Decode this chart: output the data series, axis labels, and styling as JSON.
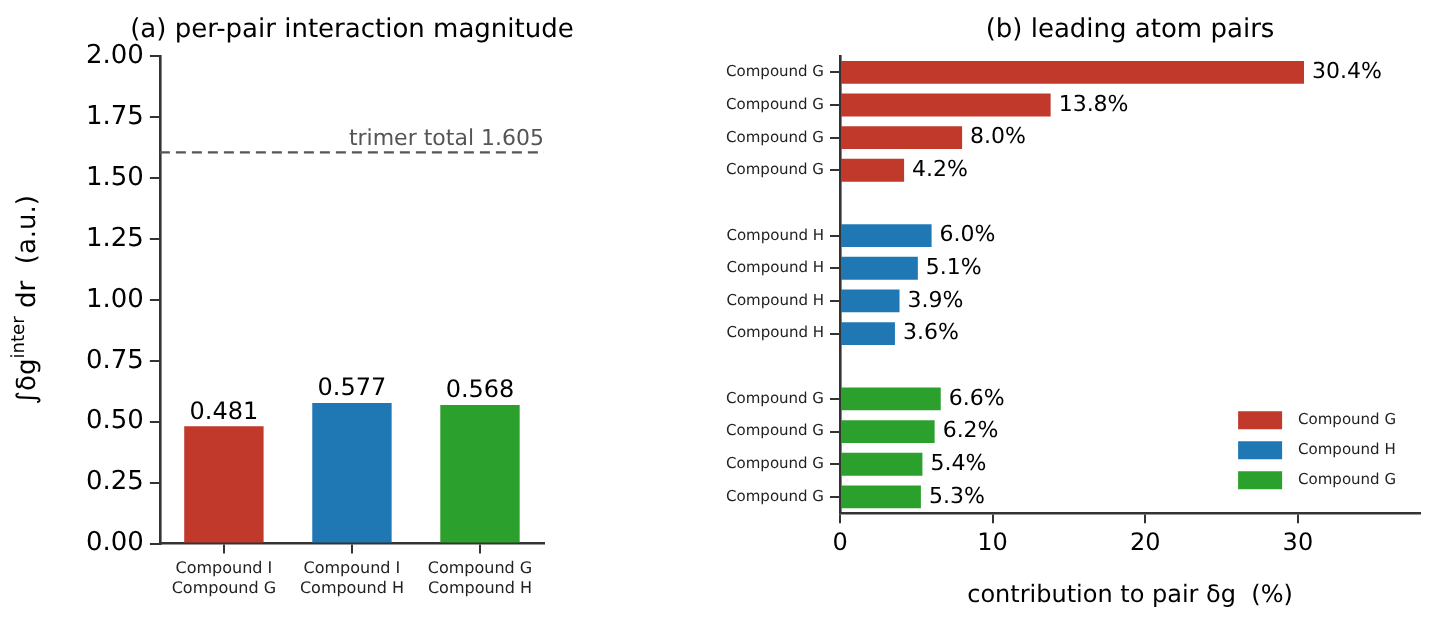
{
  "chart_data": [
    {
      "type": "bar",
      "title": "(a) per-pair interaction magnitude",
      "ylabel": "∫δg$^{inter}$ dr  (a.u.)",
      "categories": [
        "Compound I\nCompound G",
        "Compound I\nCompound H",
        "Compound G\nCompound H"
      ],
      "values": [
        0.481,
        0.577,
        0.568
      ],
      "colors": [
        "#c0392b",
        "#1f77b4",
        "#2ca02c"
      ],
      "ylim": [
        0,
        2
      ],
      "yticks": [
        {
          "value": 0,
          "label": "0.00"
        },
        {
          "value": 0.25,
          "label": "0.25"
        },
        {
          "value": 0.5,
          "label": "0.50"
        },
        {
          "value": 0.75,
          "label": "0.75"
        },
        {
          "value": 1,
          "label": "1.00"
        },
        {
          "value": 1.25,
          "label": "1.25"
        },
        {
          "value": 1.5,
          "label": "1.50"
        },
        {
          "value": 1.75,
          "label": "1.75"
        },
        {
          "value": 2,
          "label": "2.00"
        }
      ],
      "ref_lines": [
        {
          "axis": "y",
          "value": 1.605,
          "label": "trimer total 1.605",
          "color": "#555555",
          "line_style": "dashed"
        }
      ],
      "data_labels": true,
      "grid": false,
      "legend": false
    },
    {
      "type": "bar",
      "orientation": "horizontal",
      "title": "(b) leading atom pairs",
      "xlabel": "contribution to pair δg  (%)",
      "categories": [
        "Compound G",
        "Compound G",
        "Compound G",
        "Compound G",
        null,
        "Compound H",
        "Compound H",
        "Compound H",
        "Compound H",
        null,
        "Compound G",
        "Compound G",
        "Compound G",
        "Compound G"
      ],
      "series": [
        {
          "name": "Compound G",
          "color": "#c0392b",
          "values": [
            30.4,
            13.8,
            8.0,
            4.2,
            null,
            null,
            null,
            null,
            null,
            null,
            null,
            null,
            null,
            null
          ],
          "value_labels": [
            "30.4%",
            "13.8%",
            "8.0%",
            "4.2%",
            null,
            null,
            null,
            null,
            null,
            null,
            null,
            null,
            null,
            null
          ]
        },
        {
          "name": "Compound H",
          "color": "#1f77b4",
          "values": [
            null,
            null,
            null,
            null,
            null,
            6.0,
            5.1,
            3.9,
            3.6,
            null,
            null,
            null,
            null,
            null
          ],
          "value_labels": [
            null,
            null,
            null,
            null,
            null,
            "6.0%",
            "5.1%",
            "3.9%",
            "3.6%",
            null,
            null,
            null,
            null,
            null
          ]
        },
        {
          "name": "Compound G",
          "color": "#2ca02c",
          "values": [
            null,
            null,
            null,
            null,
            null,
            null,
            null,
            null,
            null,
            null,
            6.6,
            6.2,
            5.4,
            5.3
          ],
          "value_labels": [
            null,
            null,
            null,
            null,
            null,
            null,
            null,
            null,
            null,
            null,
            "6.6%",
            "6.2%",
            "5.4%",
            "5.3%"
          ]
        }
      ],
      "xlim": [
        0,
        38
      ],
      "xticks": [
        0,
        10,
        20,
        30
      ],
      "grid": false,
      "legend": "bottom right"
    }
  ]
}
